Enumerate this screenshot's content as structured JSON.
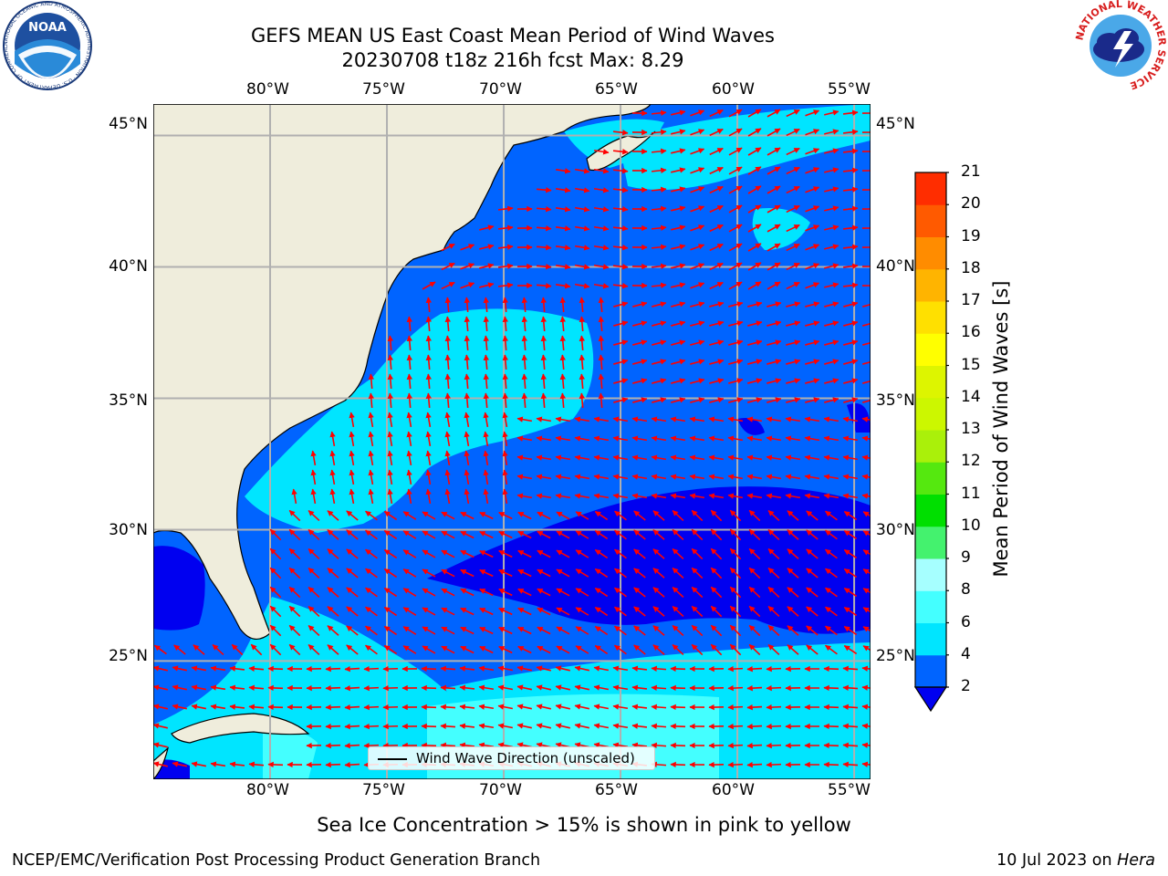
{
  "title": {
    "line1": "GEFS MEAN US East Coast Mean Period of Wind Waves",
    "line2": "20230708 t18z 216h fcst   Max: 8.29"
  },
  "logos": {
    "left": "NOAA",
    "left_ring": "NATIONAL OCEANIC AND ATMOSPHERIC ADMINISTRATION · U.S. DEPARTMENT OF COMMERCE",
    "right_ring": "NATIONAL WEATHER SERVICE"
  },
  "map": {
    "lon_ticks": [
      "80°W",
      "75°W",
      "70°W",
      "65°W",
      "60°W",
      "55°W"
    ],
    "lat_ticks": [
      "45°N",
      "40°N",
      "35°N",
      "30°N",
      "25°N"
    ],
    "lon_range": [
      -85,
      -54.3
    ],
    "lat_range": [
      20.5,
      46.2
    ],
    "gridlines": true,
    "land_color": "#efeddc",
    "legend_label": "Wind Wave Direction (unscaled)"
  },
  "colorbar": {
    "label": "Mean Period of Wind Waves [s]",
    "levels": [
      "2",
      "4",
      "6",
      "8",
      "9",
      "10",
      "11",
      "12",
      "13",
      "14",
      "15",
      "16",
      "17",
      "18",
      "19",
      "20",
      "21"
    ],
    "colors": [
      "#0064ff",
      "#00e5ff",
      "#44ffff",
      "#a6ffff",
      "#44f26e",
      "#00df00",
      "#55e80f",
      "#aaf00a",
      "#ccf700",
      "#ddf500",
      "#ffff00",
      "#ffe000",
      "#ffb400",
      "#ff8c00",
      "#ff5a00",
      "#ff2d00",
      "#ff0000"
    ],
    "under_color": "#0000f0"
  },
  "note": "Sea Ice Concentration > 15% is shown in pink to yellow",
  "footer": {
    "left": "NCEP/EMC/Verification Post Processing Product Generation Branch",
    "date": "10 Jul 2023 on ",
    "host": "Hera"
  }
}
